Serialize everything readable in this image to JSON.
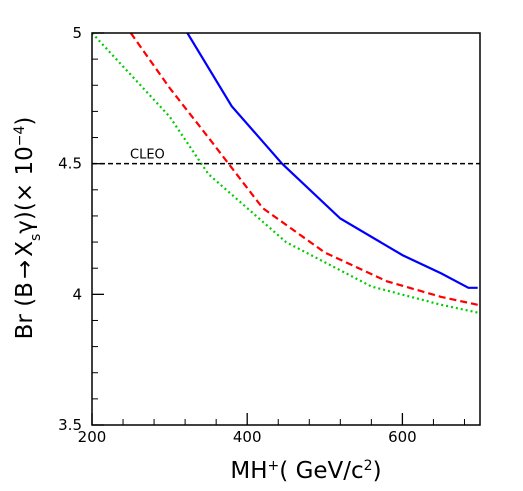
{
  "chart_data": {
    "type": "line",
    "xlabel_parts": {
      "base": "MH",
      "sup": "+",
      "rest": "( GeV/c",
      "sup2": "2",
      "end": ")"
    },
    "ylabel_parts": {
      "pre": "Br (B",
      "arrow": "→",
      "x": "X",
      "sub": "s",
      "gamma": "γ",
      "mid": ")(× 10",
      "exp": "−4",
      "end": ")"
    },
    "xlim": [
      200,
      700
    ],
    "ylim": [
      3.5,
      5.0
    ],
    "xticks": [
      200,
      400,
      600
    ],
    "yticks": [
      3.5,
      4,
      4.5,
      5
    ],
    "ytick_labels": [
      "3.5",
      "4",
      "4.5",
      "5"
    ],
    "xtick_labels": [
      "200",
      "400",
      "600"
    ],
    "grid": false,
    "series": [
      {
        "color": "#0000ff",
        "style": "solid",
        "x": [
          323,
          380,
          445,
          520,
          600,
          650,
          685,
          697
        ],
        "y": [
          5.0,
          4.72,
          4.5,
          4.29,
          4.15,
          4.08,
          4.025,
          4.025
        ]
      },
      {
        "color": "#ff0000",
        "style": "dashed",
        "x": [
          250,
          300,
          350,
          420,
          500,
          580,
          650,
          697
        ],
        "y": [
          5.0,
          4.79,
          4.6,
          4.33,
          4.16,
          4.05,
          3.99,
          3.96
        ]
      },
      {
        "color": "#00cc00",
        "style": "dotted",
        "x": [
          200,
          250,
          300,
          350,
          450,
          560,
          650,
          697
        ],
        "y": [
          5.0,
          4.84,
          4.68,
          4.46,
          4.2,
          4.03,
          3.96,
          3.93
        ]
      }
    ],
    "reference_line": {
      "y": 4.5,
      "label": "CLEO",
      "color": "#000000",
      "style": "dashed"
    }
  }
}
